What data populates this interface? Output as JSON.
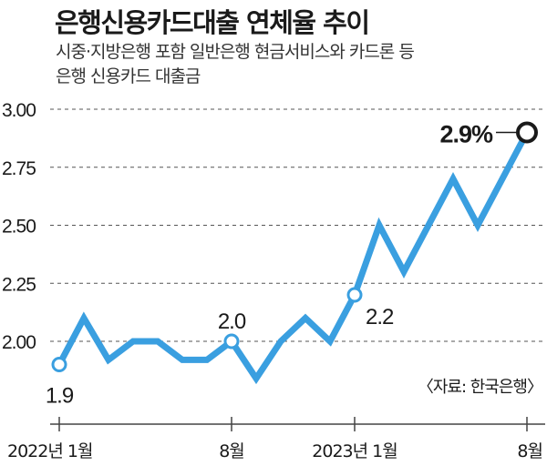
{
  "chart_data": {
    "type": "line",
    "title": "은행신용카드대출 연체율 추이",
    "subtitle_lines": [
      "시중·지방은행 포함 일반은행 현금서비스와 카드론 등",
      "은행 신용카드 대출금"
    ],
    "source": "〈자료: 한국은행〉",
    "x": [
      "2022-01",
      "2022-02",
      "2022-03",
      "2022-04",
      "2022-05",
      "2022-06",
      "2022-07",
      "2022-08",
      "2022-09",
      "2022-10",
      "2022-11",
      "2022-12",
      "2023-01",
      "2023-02",
      "2023-03",
      "2023-04",
      "2023-05",
      "2023-06",
      "2023-07",
      "2023-08"
    ],
    "values": [
      1.9,
      2.1,
      1.92,
      2.0,
      2.0,
      1.92,
      1.92,
      2.0,
      1.84,
      2.0,
      2.1,
      2.0,
      2.2,
      2.5,
      2.3,
      2.5,
      2.7,
      2.5,
      2.7,
      2.9
    ],
    "ylim": [
      1.82,
      3.0
    ],
    "yticks": [
      "3.00",
      "2.75",
      "2.50",
      "2.25",
      "2.00"
    ],
    "ytick_values": [
      3.0,
      2.75,
      2.5,
      2.25,
      2.0
    ],
    "xtick_labels": [
      "2022년 1월",
      "8월",
      "2023년 1월",
      "8월"
    ],
    "xtick_index": [
      0,
      7,
      12,
      19
    ],
    "annotations": [
      {
        "index": 0,
        "label": "1.9"
      },
      {
        "index": 7,
        "label": "2.0"
      },
      {
        "index": 12,
        "label": "2.2"
      },
      {
        "index": 19,
        "label": "2.9%"
      }
    ],
    "line_color": "#3a9fe0",
    "grid": true
  }
}
